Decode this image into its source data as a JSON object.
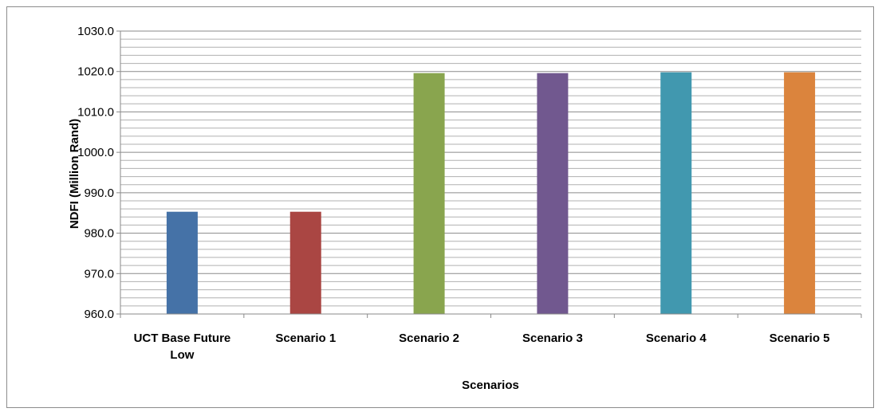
{
  "chart_data": {
    "type": "bar",
    "title": "",
    "xlabel": "Scenarios",
    "ylabel": "NDFI (Million Rand)",
    "categories": [
      "UCT Base Future Low",
      "Scenario 1",
      "Scenario  2",
      "Scenario  3",
      "Scenario  4",
      "Scenario  5"
    ],
    "category_lines": [
      [
        "UCT Base Future",
        "Low"
      ],
      [
        "Scenario 1"
      ],
      [
        "Scenario  2"
      ],
      [
        "Scenario  3"
      ],
      [
        "Scenario  4"
      ],
      [
        "Scenario  5"
      ]
    ],
    "values": [
      985.3,
      985.3,
      1019.6,
      1019.6,
      1019.8,
      1019.8
    ],
    "colors": [
      "#4572a7",
      "#aa4643",
      "#89a54e",
      "#71588f",
      "#4198af",
      "#db843d"
    ],
    "ylim": [
      960,
      1030
    ],
    "yticks": [
      960,
      970,
      980,
      990,
      1000,
      1010,
      1020,
      1030
    ],
    "ytick_labels": [
      "960.0",
      "970.0",
      "980.0",
      "990.0",
      "1000.0",
      "1010.0",
      "1020.0",
      "1030.0"
    ],
    "minor_gridline_step": 2,
    "grid": true,
    "legend": "none"
  }
}
